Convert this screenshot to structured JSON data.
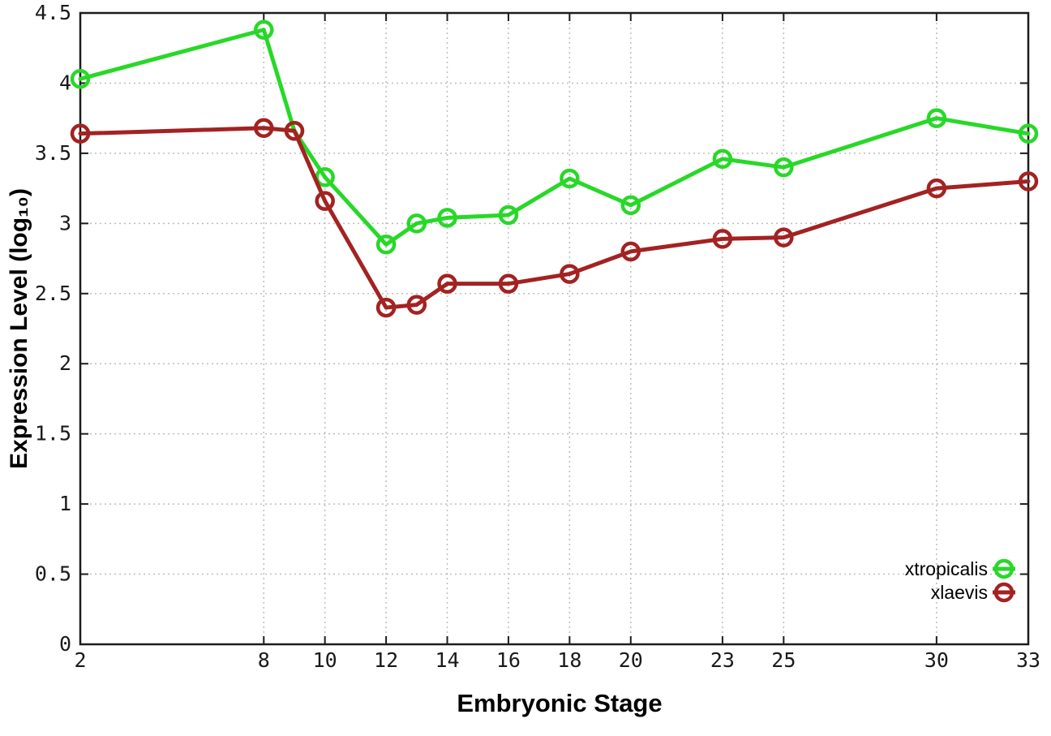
{
  "chart_data": {
    "type": "line",
    "title": "",
    "xlabel": "Embryonic Stage",
    "ylabel": "Expression Level (log₁₀)",
    "x": [
      2,
      8,
      9,
      10,
      12,
      13,
      14,
      16,
      18,
      20,
      23,
      25,
      30,
      33
    ],
    "series": [
      {
        "name": "xtropicalis",
        "color": "#28d828",
        "values": [
          4.03,
          4.38,
          3.66,
          3.33,
          2.85,
          3.0,
          3.04,
          3.06,
          3.32,
          3.13,
          3.46,
          3.4,
          3.75,
          3.64
        ]
      },
      {
        "name": "xlaevis",
        "color": "#a32222",
        "values": [
          3.64,
          3.68,
          3.66,
          3.16,
          2.4,
          2.42,
          2.57,
          2.57,
          2.64,
          2.8,
          2.89,
          2.9,
          3.25,
          3.3
        ]
      }
    ],
    "x_ticks": [
      2,
      8,
      10,
      12,
      14,
      16,
      18,
      20,
      23,
      25,
      30,
      33
    ],
    "y_ticks": [
      0,
      0.5,
      1,
      1.5,
      2,
      2.5,
      3,
      3.5,
      4,
      4.5
    ],
    "xlim": [
      2,
      33
    ],
    "ylim": [
      0,
      4.5
    ],
    "grid": true,
    "legend_position": "bottom-right-inside",
    "legend_entries": [
      "xtropicalis",
      "xlaevis"
    ]
  },
  "style": {
    "grid_color": "#bdbdbd",
    "border_color": "#1c1c1c",
    "tick_color": "#1c1c1c",
    "background": "#ffffff"
  }
}
